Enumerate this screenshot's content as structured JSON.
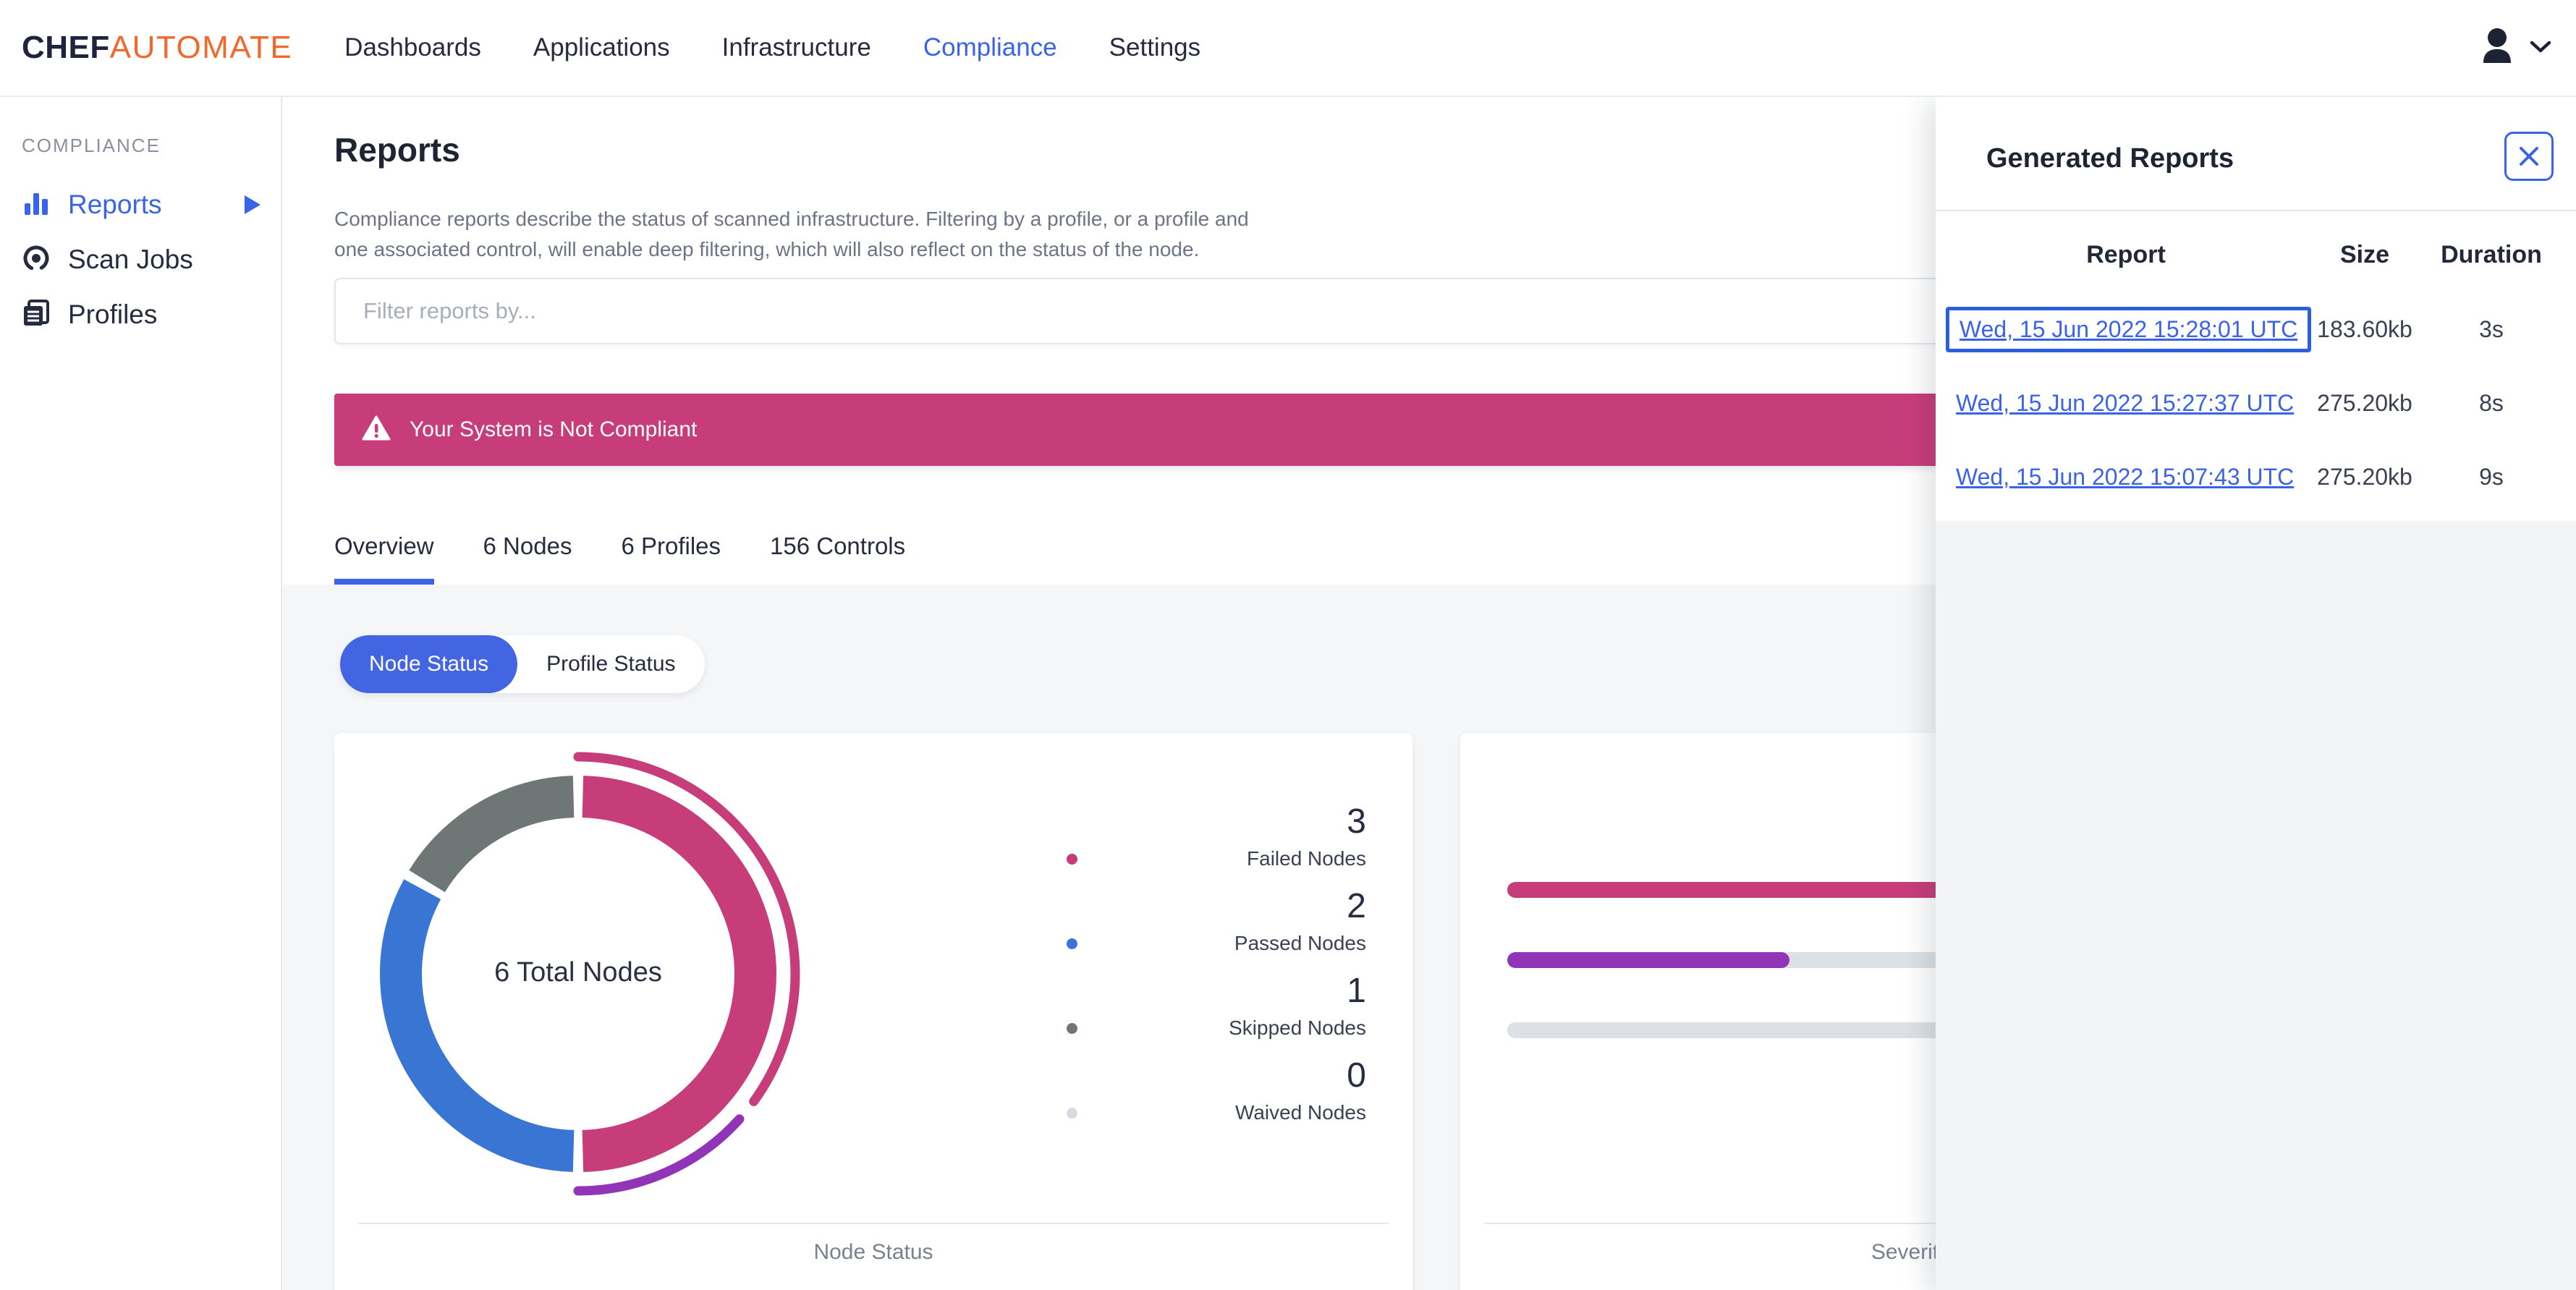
{
  "navbar": {
    "logo_chef": "CHEF",
    "logo_automate": "AUTOMATE",
    "items": [
      {
        "label": "Dashboards",
        "active": false
      },
      {
        "label": "Applications",
        "active": false
      },
      {
        "label": "Infrastructure",
        "active": false
      },
      {
        "label": "Compliance",
        "active": true
      },
      {
        "label": "Settings",
        "active": false
      }
    ]
  },
  "sidebar": {
    "section": "COMPLIANCE",
    "items": [
      {
        "label": "Reports",
        "icon": "bar-chart-icon",
        "active": true,
        "has_submenu": true
      },
      {
        "label": "Scan Jobs",
        "icon": "scan-nodes-icon",
        "active": false
      },
      {
        "label": "Profiles",
        "icon": "profiles-icon",
        "active": false
      }
    ]
  },
  "page": {
    "title": "Reports",
    "description_line1": "Compliance reports describe the status of scanned infrastructure. Filtering by a profile, or a profile and",
    "description_line2": "one associated control, will enable deep filtering, which will also reflect on the status of the node.",
    "filter_placeholder": "Filter reports by...",
    "banner": {
      "icon": "warning-triangle-icon",
      "text": "Your System is Not Compliant"
    },
    "tabs": [
      {
        "label": "Overview",
        "active": true
      },
      {
        "label": "6 Nodes",
        "active": false
      },
      {
        "label": "6 Profiles",
        "active": false
      },
      {
        "label": "156 Controls",
        "active": false
      }
    ],
    "status_toggle": [
      {
        "label": "Node Status",
        "active": true
      },
      {
        "label": "Profile Status",
        "active": false
      }
    ]
  },
  "chart_data": [
    {
      "type": "donut",
      "title": "Node Status",
      "center_label": "6 Total Nodes",
      "total": 6,
      "segments": [
        {
          "label": "Failed Nodes",
          "value": 3,
          "color": "#C63D7A"
        },
        {
          "label": "Passed Nodes",
          "value": 2,
          "color": "#3976D3"
        },
        {
          "label": "Skipped Nodes",
          "value": 1,
          "color": "#6E7776"
        },
        {
          "label": "Waived Nodes",
          "value": 0,
          "color": "#D5DBE0"
        }
      ],
      "outer_arcs": [
        {
          "color": "#C63D7A",
          "start_deg": 0,
          "end_deg": 126
        },
        {
          "color": "#9035B8",
          "start_deg": 132,
          "end_deg": 180
        }
      ],
      "legend_position": "right"
    },
    {
      "type": "bar-horizontal",
      "title": "Severity",
      "track_color": "#DDE1E6",
      "bars": [
        {
          "fill_color": "#C63D7A",
          "fill_pct": 100
        },
        {
          "fill_color": "#9035B8",
          "fill_pct": 35
        },
        {
          "fill_color": null,
          "fill_pct": 0
        }
      ]
    }
  ],
  "panel": {
    "title": "Generated Reports",
    "close_icon": "close-icon",
    "columns": [
      "Report",
      "Size",
      "Duration"
    ],
    "rows": [
      {
        "report": "Wed, 15 Jun 2022 15:28:01 UTC",
        "size": "183.60kb",
        "duration": "3s",
        "focused": true
      },
      {
        "report": "Wed, 15 Jun 2022 15:27:37 UTC",
        "size": "275.20kb",
        "duration": "8s",
        "focused": false
      },
      {
        "report": "Wed, 15 Jun 2022 15:07:43 UTC",
        "size": "275.20kb",
        "duration": "9s",
        "focused": false
      }
    ]
  },
  "colors": {
    "primary_blue": "#3B63E8",
    "toggle_blue": "#4465E3",
    "failed_pink": "#C63D7A",
    "passed_blue": "#3976D3",
    "skipped_gray": "#6E7776",
    "waived_gray": "#D5DBE0",
    "severity_purple": "#9035B8",
    "brand_orange": "#F2682A",
    "background_gray": "#F4F6F8"
  }
}
